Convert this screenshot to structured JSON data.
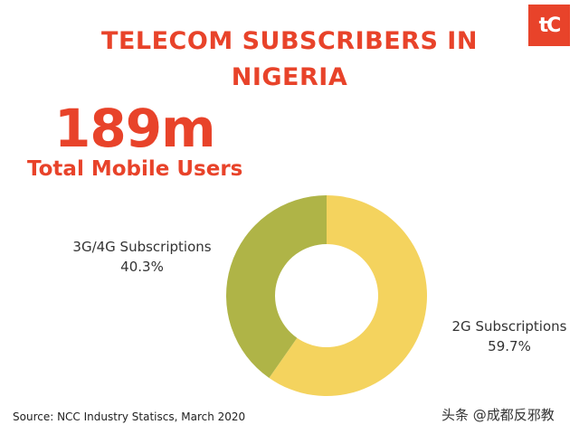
{
  "logo": {
    "text": "tC"
  },
  "header": {
    "title_line1": "TELECOM SUBSCRIBERS IN",
    "title_line2": "NIGERIA"
  },
  "highlight": {
    "value": "189m",
    "label": "Total Mobile Users"
  },
  "chart_data": {
    "type": "pie",
    "variant": "donut",
    "title": "TELECOM SUBSCRIBERS IN NIGERIA",
    "slices": [
      {
        "label": "2G Subscriptions",
        "value": 59.7,
        "value_text": "59.7%",
        "color": "#f4d35e"
      },
      {
        "label": "3G/4G Subscriptions",
        "value": 40.3,
        "value_text": "40.3%",
        "color": "#afb447"
      }
    ],
    "legend": "none"
  },
  "footer": {
    "source": "Source: NCC Industry Statiscs, March 2020",
    "watermark": "头条 @成都反邪教"
  },
  "colors": {
    "accent": "#e8432a",
    "slice_2g": "#f4d35e",
    "slice_3g4g": "#afb447"
  }
}
